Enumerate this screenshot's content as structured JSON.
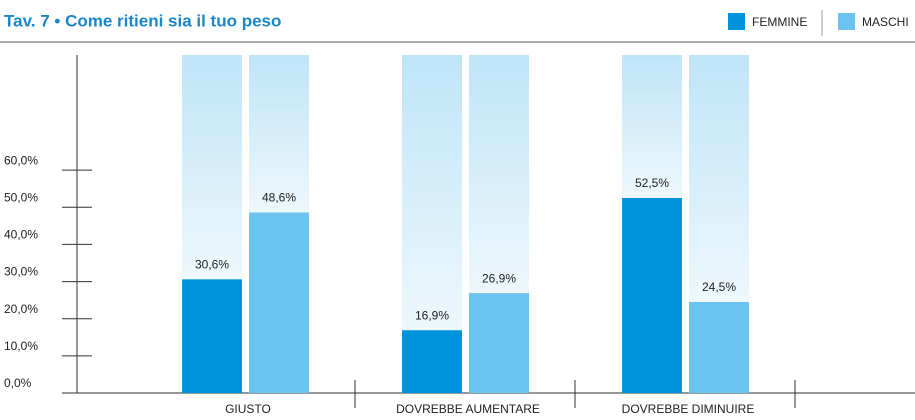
{
  "chart_data": {
    "type": "bar",
    "title": "Tav. 7 • Come ritieni sia il tuo peso",
    "categories": [
      "GIUSTO",
      "DOVREBBE AUMENTARE",
      "DOVREBBE DIMINUIRE"
    ],
    "series": [
      {
        "name": "FEMMINE",
        "color": "#0093dd",
        "values": [
          30.6,
          16.9,
          52.5
        ],
        "value_labels": [
          "30,6%",
          "16,9%",
          "52,5%"
        ]
      },
      {
        "name": "MASCHI",
        "color": "#6cc3ef",
        "values": [
          48.6,
          26.9,
          24.5
        ],
        "value_labels": [
          "48,6%",
          "26,9%",
          "24,5%"
        ]
      }
    ],
    "ylim": [
      0,
      91
    ],
    "yticks": [
      {
        "value": 0,
        "label": "0,0%"
      },
      {
        "value": 10,
        "label": "10,0%"
      },
      {
        "value": 20,
        "label": "20,0%"
      },
      {
        "value": 30,
        "label": "30,0%"
      },
      {
        "value": 40,
        "label": "40,0%"
      },
      {
        "value": 50,
        "label": "50,0%"
      },
      {
        "value": 60,
        "label": "60,0%"
      }
    ]
  }
}
